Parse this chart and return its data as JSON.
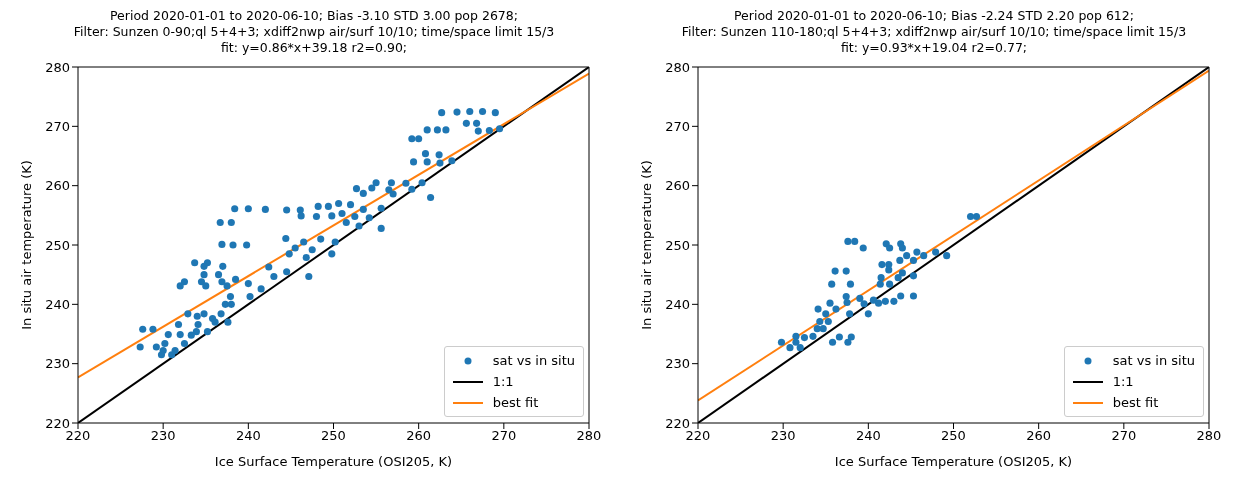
{
  "chart_data": [
    {
      "type": "scatter",
      "title": "Period 2020-01-01 to 2020-06-10; Bias -3.10 STD 3.00 pop 2678;\nFilter: Sunzen 0-90;ql 5+4+3; xdiff2nwp air/surf 10/10; time/space limit 15/3\nfit: y=0.86*x+39.18 r2=0.90;",
      "xlabel": "Ice Surface Temperature (OSI205, K)",
      "ylabel": "In situ air temperature (K)",
      "xlim": [
        220,
        280
      ],
      "ylim": [
        220,
        280
      ],
      "xticks": [
        220,
        230,
        240,
        250,
        260,
        270,
        280
      ],
      "yticks": [
        220,
        230,
        240,
        250,
        260,
        270,
        280
      ],
      "legend": "bottom right",
      "series": [
        {
          "name": "sat vs in situ",
          "type": "scatter",
          "marker": "circle",
          "color": "#1f77b4",
          "x": [
            262.7,
            264.5,
            266,
            267.5,
            269,
            265.6,
            266.8,
            261,
            262.2,
            263.2,
            267,
            268.3,
            269.5,
            259.2,
            260,
            260.8,
            262.4,
            259.4,
            261,
            262.5,
            263.9,
            255,
            256.8,
            258.5,
            260.4,
            252.7,
            254.5,
            256.5,
            259.2,
            253.5,
            257,
            261.4,
            250.6,
            252,
            253.5,
            255.6,
            251,
            252.5,
            254.2,
            251.5,
            253,
            255.6,
            238.4,
            240,
            242,
            244.5,
            246.1,
            248.2,
            249.4,
            246.2,
            248,
            249.8,
            236.7,
            238,
            236.9,
            238.2,
            239.8,
            244.4,
            246.5,
            248.5,
            250.2,
            245.5,
            247.5,
            249.8,
            244.8,
            246.8,
            233.7,
            235.2,
            234.8,
            237,
            234.8,
            236.5,
            232.5,
            234.5,
            236.9,
            232,
            235,
            237.5,
            238.5,
            240,
            241.5,
            237.9,
            240.2,
            237.3,
            238,
            242.4,
            244.5,
            247.1,
            243,
            232.9,
            234.8,
            236.8,
            234,
            235.8,
            236.1,
            237.6,
            231.8,
            234.1,
            227.6,
            228.8,
            233.9,
            235.2,
            230.6,
            232,
            233.3,
            230.2,
            232.5,
            227.3,
            229.2,
            230,
            231.4,
            229.8,
            231
          ],
          "values": [
            272.3,
            272.4,
            272.5,
            272.5,
            272.3,
            270.5,
            270.5,
            269.4,
            269.4,
            269.4,
            269.2,
            269.3,
            269.6,
            267.9,
            267.9,
            265.4,
            265.2,
            264,
            264,
            263.8,
            264.2,
            260.5,
            260.5,
            260.4,
            260.5,
            259.5,
            259.6,
            259.3,
            259.4,
            258.7,
            258.6,
            258,
            257,
            256.8,
            256,
            256.2,
            255.3,
            254.8,
            254.6,
            253.8,
            253.2,
            252.8,
            256.1,
            256.1,
            256,
            255.9,
            255.9,
            256.5,
            256.5,
            254.9,
            254.8,
            254.9,
            253.8,
            253.8,
            250.1,
            250,
            250,
            251.1,
            250.5,
            251,
            250.5,
            249.5,
            249.2,
            248.5,
            248.5,
            247.9,
            247,
            247,
            246.4,
            246.4,
            245,
            245,
            243.8,
            243.8,
            243.8,
            243.1,
            243.1,
            243.1,
            244.2,
            243.5,
            242.6,
            241.3,
            241.3,
            240,
            240,
            246.3,
            245.5,
            244.7,
            244.7,
            238.4,
            238.4,
            238.4,
            238,
            237.6,
            237,
            237,
            236.6,
            236.6,
            235.8,
            235.8,
            235.4,
            235.4,
            234.9,
            234.9,
            234.8,
            233.4,
            233.4,
            232.8,
            232.8,
            232.2,
            232.2,
            231.5,
            231.5
          ]
        },
        {
          "name": "1:1",
          "type": "line",
          "color": "#000000",
          "x": [
            220,
            280
          ],
          "values": [
            220,
            280
          ]
        },
        {
          "name": "best fit",
          "type": "line",
          "color": "#ff7f0e",
          "x": [
            220,
            280
          ],
          "values": [
            227.7,
            278.9
          ]
        }
      ]
    },
    {
      "type": "scatter",
      "title": "Period 2020-01-01 to 2020-06-10; Bias -2.24 STD 2.20 pop 612;\nFilter: Sunzen 110-180;ql 5+4+3; xdiff2nwp air/surf 10/10; time/space limit 15/3\nfit: y=0.93*x+19.04 r2=0.77;",
      "xlabel": "Ice Surface Temperature (OSI205, K)",
      "ylabel": "In situ air temperature (K)",
      "xlim": [
        220,
        280
      ],
      "ylim": [
        220,
        280
      ],
      "xticks": [
        220,
        230,
        240,
        250,
        260,
        270,
        280
      ],
      "yticks": [
        220,
        230,
        240,
        250,
        260,
        270,
        280
      ],
      "legend": "bottom right",
      "series": [
        {
          "name": "sat vs in situ",
          "type": "scatter",
          "marker": "circle",
          "color": "#1f77b4",
          "x": [
            252,
            252.7,
            237.6,
            238.4,
            239.4,
            242.1,
            243.8,
            242.5,
            244,
            245.7,
            247.9,
            244.5,
            246.5,
            249.2,
            243.7,
            245.3,
            241.6,
            242.4,
            242.4,
            244,
            245.3,
            236.1,
            237.4,
            241.5,
            243.5,
            235.7,
            237.9,
            241.4,
            242.5,
            245.3,
            243.8,
            237.4,
            239,
            240.6,
            242,
            243,
            235.5,
            237.5,
            239.5,
            241.2,
            234.1,
            236.2,
            235,
            237.8,
            240,
            234.3,
            235.3,
            234,
            234.7,
            231.5,
            233.5,
            232.5,
            236.6,
            238,
            229.8,
            231.5,
            235.8,
            237.6,
            230.8,
            232
          ],
          "values": [
            254.8,
            254.8,
            250.6,
            250.6,
            249.5,
            250.2,
            250.2,
            249.5,
            249.5,
            248.8,
            248.8,
            248.2,
            248.2,
            248.2,
            247.4,
            247.4,
            246.7,
            246.7,
            245.8,
            245.3,
            244.8,
            245.6,
            245.6,
            244.5,
            244.5,
            243.4,
            243.4,
            243.4,
            243.4,
            241.4,
            241.4,
            241.3,
            241,
            240.7,
            240.5,
            240.5,
            240.2,
            240.3,
            240.1,
            240.2,
            239.2,
            239.2,
            238.4,
            238.4,
            238.4,
            237.1,
            237.1,
            235.9,
            235.9,
            234.6,
            234.6,
            234.4,
            234.5,
            234.5,
            233.6,
            233.6,
            233.6,
            233.6,
            232.7,
            232.7
          ]
        },
        {
          "name": "1:1",
          "type": "line",
          "color": "#000000",
          "x": [
            220,
            280
          ],
          "values": [
            220,
            280
          ]
        },
        {
          "name": "best fit",
          "type": "line",
          "color": "#ff7f0e",
          "x": [
            220,
            280
          ],
          "values": [
            223.8,
            279.4
          ]
        }
      ]
    }
  ]
}
